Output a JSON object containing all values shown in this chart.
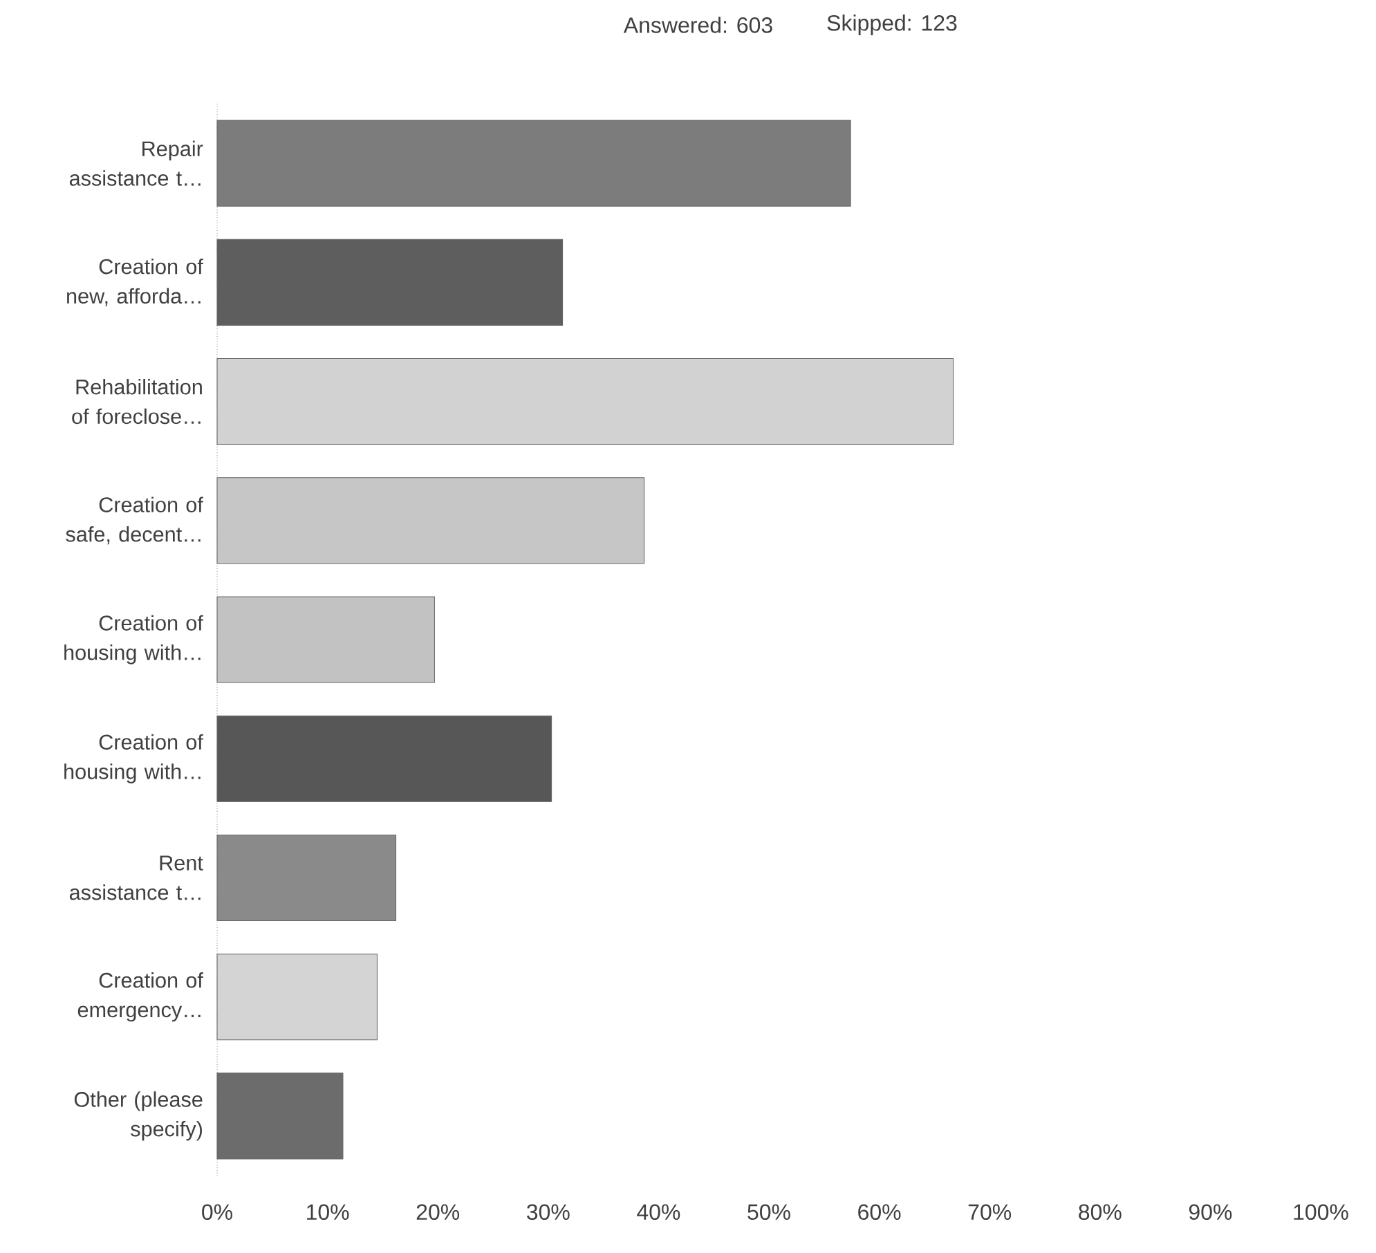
{
  "chart_data": {
    "type": "bar",
    "orientation": "horizontal",
    "title": "Answered: 603",
    "subtitle": "Skipped: 123",
    "categories": [
      "Repair assistance t…",
      "Creation of new, afforda…",
      "Rehabilitation of foreclose…",
      "Creation of safe, decent…",
      "Creation of housing with…",
      "Creation of housing with…",
      "Rent assistance t…",
      "Creation of emergency…",
      "Other (please specify)"
    ],
    "values": [
      57.4,
      31.3,
      66.7,
      38.7,
      19.7,
      30.3,
      16.2,
      14.5,
      11.4
    ],
    "colors": [
      "#7c7c7c",
      "#5e5e5e",
      "#d2d2d2",
      "#c6c6c6",
      "#c2c2c2",
      "#575757",
      "#8a8a8a",
      "#d4d4d4",
      "#6c6c6c"
    ],
    "xlim": [
      0,
      100
    ],
    "xticks": [
      {
        "value": 0,
        "label": "0%"
      },
      {
        "value": 10,
        "label": "10%"
      },
      {
        "value": 20,
        "label": "20%"
      },
      {
        "value": 30,
        "label": "30%"
      },
      {
        "value": 40,
        "label": "40%"
      },
      {
        "value": 50,
        "label": "50%"
      },
      {
        "value": 60,
        "label": "60%"
      },
      {
        "value": 70,
        "label": "70%"
      },
      {
        "value": 80,
        "label": "80%"
      },
      {
        "value": 90,
        "label": "90%"
      },
      {
        "value": 100,
        "label": "100%"
      }
    ],
    "grid": false
  }
}
